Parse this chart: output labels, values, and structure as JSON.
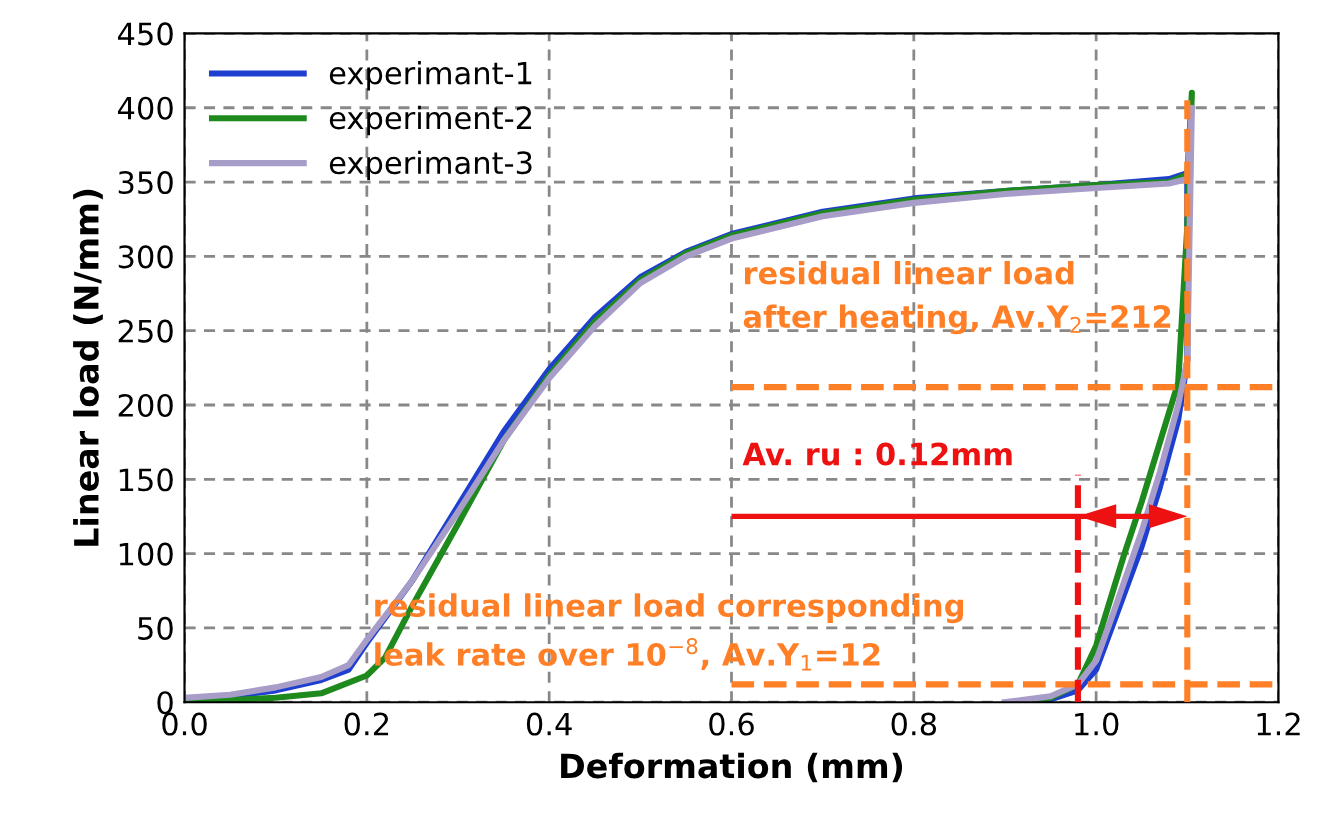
{
  "chart_data": {
    "type": "line",
    "xlabel": "Deformation (mm)",
    "ylabel": "Linear load (N/mm)",
    "xlim": [
      0.0,
      1.2
    ],
    "xticks": [
      {
        "value": 0,
        "label": "0.0"
      },
      0.2,
      0.4,
      0.6,
      0.8,
      {
        "value": 1,
        "label": "1.0"
      },
      1.2
    ],
    "ylim": [
      0,
      450
    ],
    "yticks": [
      0,
      50,
      100,
      150,
      200,
      250,
      300,
      350,
      400,
      450
    ],
    "grid": true,
    "legend": "top left",
    "line_style": "solid",
    "marker": "none",
    "series": [
      {
        "name": "experimant-1",
        "color": "#1f3fd0",
        "x": [
          0,
          0.05,
          0.1,
          0.15,
          0.18,
          0.2,
          0.25,
          0.3,
          0.35,
          0.4,
          0.45,
          0.5,
          0.55,
          0.6,
          0.7,
          0.8,
          0.9,
          1.0,
          1.08,
          1.1,
          1.1,
          1.09,
          1.07,
          1.05,
          1.02,
          1.0,
          0.98,
          0.95,
          0.93
        ],
        "values": [
          2,
          4,
          8,
          15,
          22,
          40,
          82,
          132,
          182,
          224,
          259,
          286,
          303,
          315,
          330,
          339,
          344,
          348,
          352,
          356,
          230,
          190,
          145,
          105,
          55,
          22,
          8,
          2,
          0
        ]
      },
      {
        "name": "experiment-2",
        "color": "#1e8a1e",
        "x": [
          0,
          0.1,
          0.15,
          0.2,
          0.22,
          0.25,
          0.3,
          0.35,
          0.4,
          0.45,
          0.5,
          0.55,
          0.6,
          0.7,
          0.8,
          0.9,
          1.0,
          1.08,
          1.1,
          1.105,
          1.1,
          1.09,
          1.07,
          1.05,
          1.03,
          1.0,
          0.98,
          0.95,
          0.92
        ],
        "values": [
          0,
          3,
          6,
          18,
          30,
          65,
          120,
          176,
          220,
          256,
          284,
          302,
          314,
          329,
          338,
          344,
          348,
          350,
          355,
          410,
          320,
          215,
          175,
          135,
          98,
          38,
          12,
          3,
          0
        ]
      },
      {
        "name": "experimant-3",
        "color": "#a89cc8",
        "x": [
          0,
          0.05,
          0.1,
          0.15,
          0.18,
          0.2,
          0.25,
          0.3,
          0.35,
          0.4,
          0.45,
          0.5,
          0.55,
          0.6,
          0.7,
          0.8,
          0.9,
          1.0,
          1.08,
          1.1,
          1.105,
          1.1,
          1.09,
          1.07,
          1.05,
          1.02,
          1.0,
          0.98,
          0.95,
          0.9
        ],
        "values": [
          3,
          5,
          10,
          17,
          25,
          42,
          82,
          128,
          176,
          218,
          253,
          282,
          300,
          312,
          327,
          336,
          342,
          346,
          349,
          352,
          400,
          230,
          200,
          155,
          115,
          62,
          28,
          12,
          4,
          0
        ]
      }
    ],
    "ref_lines": [
      {
        "axis": "y",
        "value": 212,
        "color": "#ff7f27",
        "line_style": "dashed"
      },
      {
        "axis": "y",
        "value": 12,
        "color": "#ff7f27",
        "line_style": "dashed"
      },
      {
        "axis": "x",
        "value": 1.1,
        "color": "#ff7f27",
        "line_style": "dashed"
      },
      {
        "axis": "x",
        "value": 0.98,
        "color": "#ee1111",
        "line_style": "dashed"
      }
    ],
    "annotations": [
      "residual linear load\nafter heating, Av.Y$_{2}$=212",
      "residual linear load corresponding\nleak rate over 10$^{−8}$, Av.Y$_{1}$=12",
      "Av. ru : 0.12mm"
    ]
  }
}
